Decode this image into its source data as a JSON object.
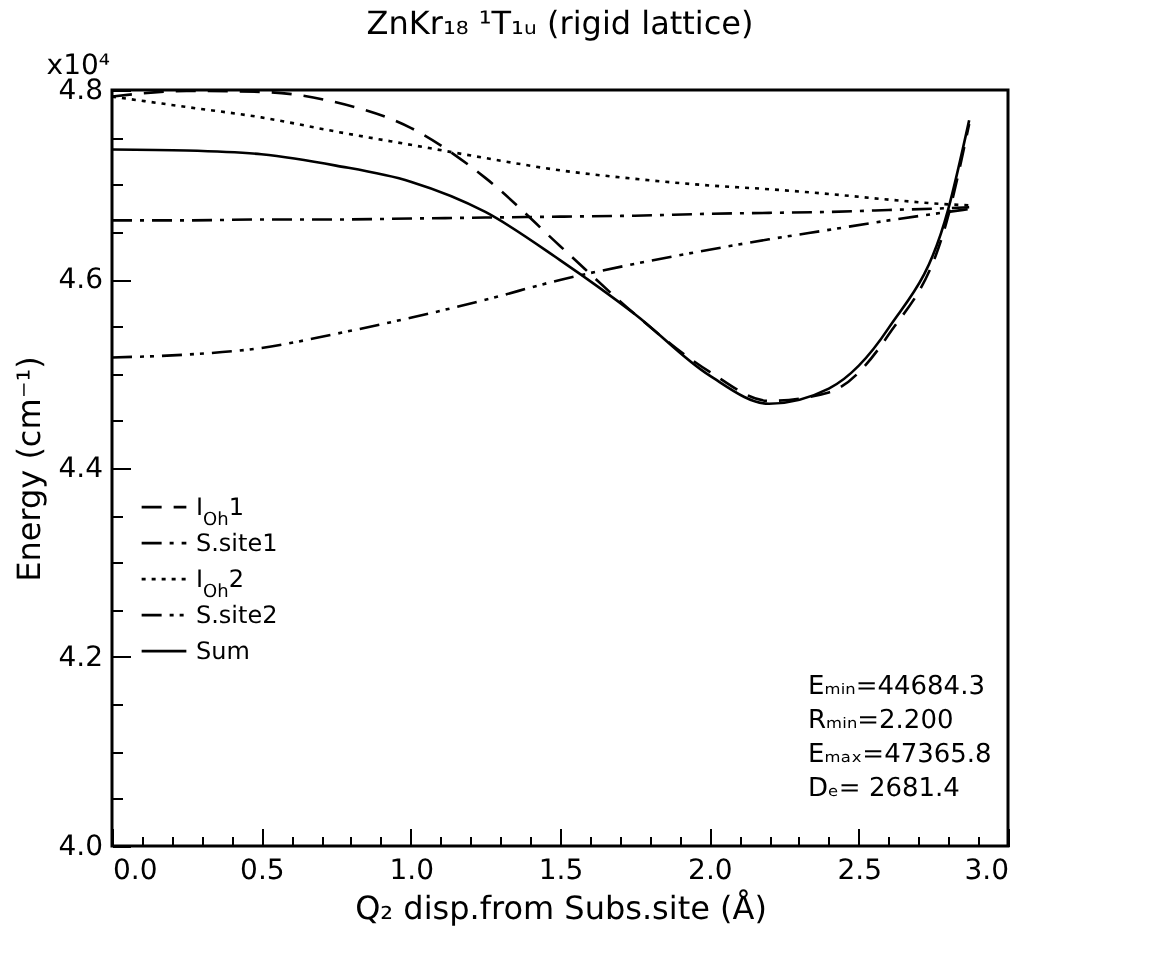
{
  "chart_data": {
    "type": "line",
    "title": "ZnKr₁₈ ¹T₁ᵤ (rigid lattice)",
    "xlabel": "Q₂ disp.from Subs.site (Å)",
    "ylabel": "Energy (cm⁻¹)",
    "x": [
      0,
      0.25,
      0.5,
      0.75,
      1.0,
      1.25,
      1.5,
      1.75,
      2.0,
      2.2,
      2.4,
      2.6,
      2.8,
      2.87
    ],
    "series": [
      {
        "name": "I$_{Oh}$1",
        "color": "#000000",
        "line_style": "dashed",
        "values": [
          4.793,
          4.799,
          4.798,
          4.787,
          4.76,
          4.707,
          4.635,
          4.563,
          4.502,
          4.471,
          4.48,
          4.541,
          4.667,
          4.764
        ]
      },
      {
        "name": "S.site1",
        "color": "#000000",
        "line_style": "dashdot",
        "values": [
          4.662,
          4.662,
          4.663,
          4.663,
          4.664,
          4.665,
          4.666,
          4.667,
          4.669,
          4.67,
          4.671,
          4.673,
          4.675,
          4.676
        ]
      },
      {
        "name": "I$_{Oh}$2",
        "color": "#000000",
        "line_style": "dotted",
        "values": [
          4.793,
          4.782,
          4.771,
          4.756,
          4.742,
          4.728,
          4.715,
          4.706,
          4.699,
          4.695,
          4.69,
          4.684,
          4.679,
          4.678
        ]
      },
      {
        "name": "S.site2",
        "color": "#000000",
        "line_style": "dashdotdot",
        "values": [
          4.517,
          4.52,
          4.527,
          4.542,
          4.559,
          4.578,
          4.599,
          4.616,
          4.631,
          4.642,
          4.652,
          4.662,
          4.671,
          4.674
        ]
      },
      {
        "name": "Sum",
        "color": "#000000",
        "line_style": "solid",
        "values": [
          4.737,
          4.736,
          4.732,
          4.72,
          4.703,
          4.671,
          4.62,
          4.563,
          4.498,
          4.468,
          4.484,
          4.548,
          4.674,
          4.768
        ]
      }
    ],
    "xlim": [
      0,
      3.0
    ],
    "xticks": [
      {
        "value": 0,
        "label": "0.0"
      },
      {
        "value": 0.1,
        "label": null
      },
      {
        "value": 0.2,
        "label": null
      },
      {
        "value": 0.3,
        "label": null
      },
      {
        "value": 0.4,
        "label": null
      },
      {
        "value": 0.5,
        "label": "0.5"
      },
      {
        "value": 0.6,
        "label": null
      },
      {
        "value": 0.7,
        "label": null
      },
      {
        "value": 0.8,
        "label": null
      },
      {
        "value": 0.9,
        "label": null
      },
      {
        "value": 1.0,
        "label": "1.0"
      },
      {
        "value": 1.1,
        "label": null
      },
      {
        "value": 1.2,
        "label": null
      },
      {
        "value": 1.3,
        "label": null
      },
      {
        "value": 1.4,
        "label": null
      },
      {
        "value": 1.5,
        "label": "1.5"
      },
      {
        "value": 1.6,
        "label": null
      },
      {
        "value": 1.7,
        "label": null
      },
      {
        "value": 1.8,
        "label": null
      },
      {
        "value": 1.9,
        "label": null
      },
      {
        "value": 2.0,
        "label": "2.0"
      },
      {
        "value": 2.1,
        "label": null
      },
      {
        "value": 2.2,
        "label": null
      },
      {
        "value": 2.3,
        "label": null
      },
      {
        "value": 2.4,
        "label": null
      },
      {
        "value": 2.5,
        "label": "2.5"
      },
      {
        "value": 2.6,
        "label": null
      },
      {
        "value": 2.7,
        "label": null
      },
      {
        "value": 2.8,
        "label": null
      },
      {
        "value": 2.9,
        "label": null
      },
      {
        "value": 3.0,
        "label": "3.0"
      }
    ],
    "ylim": [
      4.0,
      4.8
    ],
    "yticks": [
      {
        "value": 4.0,
        "label": "4.0"
      },
      {
        "value": 4.05,
        "label": null
      },
      {
        "value": 4.1,
        "label": null
      },
      {
        "value": 4.15,
        "label": null
      },
      {
        "value": 4.2,
        "label": "4.2"
      },
      {
        "value": 4.25,
        "label": null
      },
      {
        "value": 4.3,
        "label": null
      },
      {
        "value": 4.35,
        "label": null
      },
      {
        "value": 4.4,
        "label": "4.4"
      },
      {
        "value": 4.45,
        "label": null
      },
      {
        "value": 4.5,
        "label": null
      },
      {
        "value": 4.55,
        "label": null
      },
      {
        "value": 4.6,
        "label": "4.6"
      },
      {
        "value": 4.65,
        "label": null
      },
      {
        "value": 4.7,
        "label": null
      },
      {
        "value": 4.75,
        "label": null
      },
      4.8
    ],
    "grid": false,
    "legend": "left",
    "annotations": [
      {
        "text": "x10⁴",
        "x": 0,
        "y": 4.8
      },
      "Eₘᵢₙ=44684.3",
      "Rₘᵢₙ=2.200",
      "Eₘₐₓ=47365.8",
      "Dₑ=    2681.4"
    ]
  }
}
